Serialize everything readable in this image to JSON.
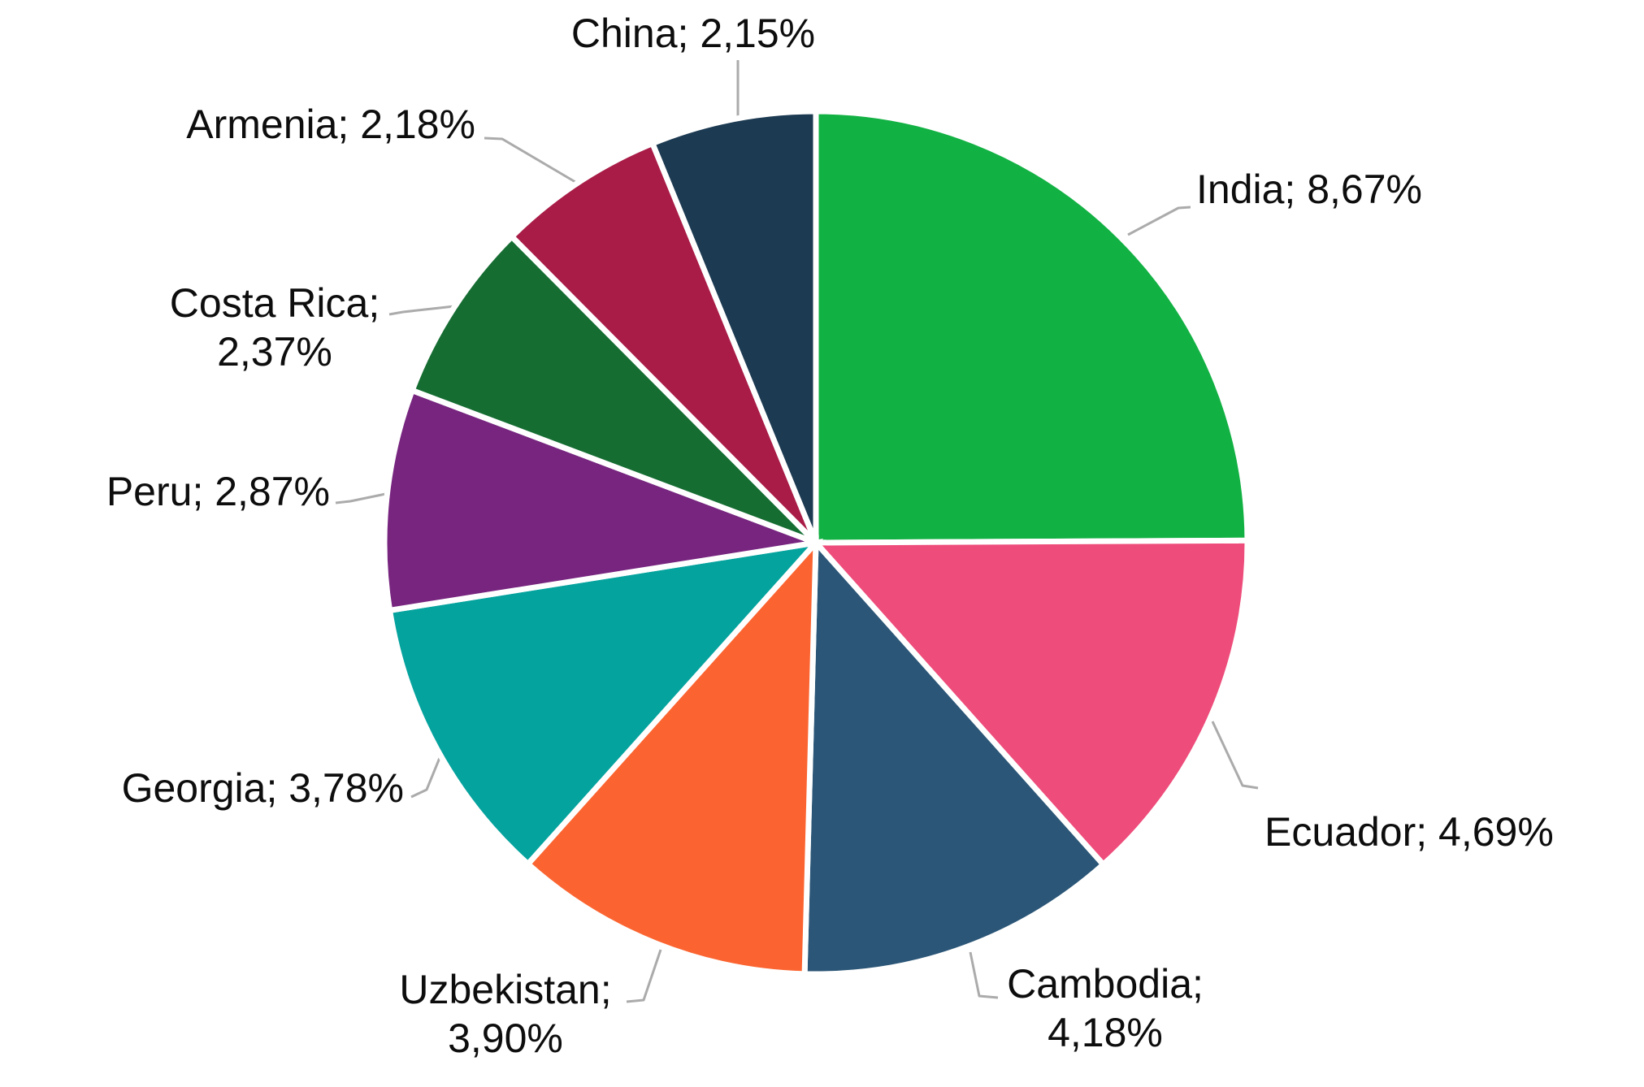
{
  "page": {
    "background_color": "#FFFFFF"
  },
  "chart_data": {
    "type": "pie",
    "title": "",
    "legend": "none",
    "labels_position": "outside-with-leader-lines",
    "start_angle_deg": 0,
    "direction": "clockwise",
    "label_format": "name; value% (comma decimal separator)",
    "text_color": "#0D0D0D",
    "leader_line_color": "#ABABAB",
    "slice_border_color": "#FFFFFF",
    "series": [
      {
        "name": "India",
        "value": 8.67,
        "display": "India; 8,67%",
        "label_lines": [
          "India; 8,67%"
        ],
        "color": "#12B143"
      },
      {
        "name": "Ecuador",
        "value": 4.69,
        "display": "Ecuador; 4,69%",
        "label_lines": [
          "Ecuador; 4,69%"
        ],
        "color": "#EE4C7A"
      },
      {
        "name": "Cambodia",
        "value": 4.18,
        "display": "Cambodia; 4,18%",
        "label_lines": [
          "Cambodia;",
          "4,18%"
        ],
        "color": "#2B5677"
      },
      {
        "name": "Uzbekistan",
        "value": 3.9,
        "display": "Uzbekistan; 3,90%",
        "label_lines": [
          "Uzbekistan;",
          "3,90%"
        ],
        "color": "#FB6430"
      },
      {
        "name": "Georgia",
        "value": 3.78,
        "display": "Georgia; 3,78%",
        "label_lines": [
          "Georgia; 3,78%"
        ],
        "color": "#05A39E"
      },
      {
        "name": "Peru",
        "value": 2.87,
        "display": "Peru; 2,87%",
        "label_lines": [
          "Peru; 2,87%"
        ],
        "color": "#77257F"
      },
      {
        "name": "Costa Rica",
        "value": 2.37,
        "display": "Costa Rica; 2,37%",
        "label_lines": [
          "Costa Rica;",
          "2,37%"
        ],
        "color": "#156D32"
      },
      {
        "name": "Armenia",
        "value": 2.18,
        "display": "Armenia; 2,18%",
        "label_lines": [
          "Armenia; 2,18%"
        ],
        "color": "#A91C47"
      },
      {
        "name": "China",
        "value": 2.15,
        "display": "China; 2,15%",
        "label_lines": [
          "China; 2,15%"
        ],
        "color": "#1C3A52"
      }
    ]
  }
}
